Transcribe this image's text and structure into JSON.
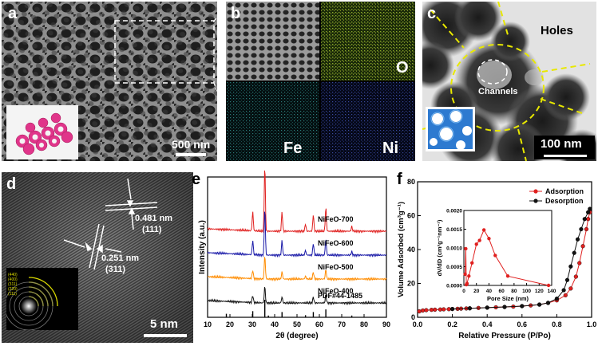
{
  "panels": {
    "a": {
      "label": "a",
      "scale": "500 nm"
    },
    "b": {
      "label": "b",
      "maps": [
        "O",
        "Fe",
        "Ni"
      ]
    },
    "c": {
      "label": "c",
      "holes": "Holes",
      "channels": "Channels",
      "scale": "100 nm"
    },
    "d": {
      "label": "d",
      "spacing1": "0.481 nm",
      "plane1": "(111)",
      "spacing2": "0.251 nm",
      "plane2": "(311)",
      "scale": "5 nm",
      "saed_rings": [
        "(440)",
        "(400)",
        "(311)",
        "(220)",
        "(111)"
      ]
    },
    "e": {
      "label": "e"
    },
    "f": {
      "label": "f"
    }
  },
  "colors": {
    "highlight": "#e8e800",
    "map_O": "#8aa82a",
    "map_Fe": "#2a7a78",
    "map_Ni": "#3a4aa0"
  },
  "chart_data": [
    {
      "type": "line",
      "panel": "e",
      "xlabel": "2θ (degree)",
      "ylabel": "Intensity (a.u.)",
      "xlim": [
        10,
        90
      ],
      "xticks": [
        "10",
        "20",
        "30",
        "40",
        "50",
        "60",
        "70",
        "80",
        "90"
      ],
      "series": [
        {
          "name": "NiFeO-700",
          "color": "#e0201f",
          "baseline": 4,
          "peaks": [
            [
              30.2,
              0.8
            ],
            [
              35.6,
              2.8
            ],
            [
              43.3,
              0.8
            ],
            [
              53.8,
              0.3
            ],
            [
              57.3,
              0.7
            ],
            [
              62.9,
              1.0
            ],
            [
              74.5,
              0.2
            ]
          ]
        },
        {
          "name": "NiFeO-600",
          "color": "#1a1aa8",
          "baseline": 3,
          "peaks": [
            [
              30.2,
              0.6
            ],
            [
              35.6,
              2.0
            ],
            [
              43.3,
              0.6
            ],
            [
              53.8,
              0.2
            ],
            [
              57.3,
              0.5
            ],
            [
              62.9,
              0.7
            ],
            [
              74.5,
              0.15
            ]
          ]
        },
        {
          "name": "NiFeO-500",
          "color": "#ff8c00",
          "baseline": 2,
          "peaks": [
            [
              30.2,
              0.35
            ],
            [
              35.6,
              1.0
            ],
            [
              43.3,
              0.3
            ],
            [
              53.8,
              0.12
            ],
            [
              57.3,
              0.3
            ],
            [
              62.9,
              0.4
            ]
          ]
        },
        {
          "name": "NiFeO-400",
          "color": "#111111",
          "baseline": 1,
          "peaks": [
            [
              30.2,
              0.3
            ],
            [
              35.6,
              0.7
            ],
            [
              43.3,
              0.25
            ],
            [
              57.3,
              0.25
            ],
            [
              62.9,
              0.35
            ]
          ]
        }
      ],
      "reference": {
        "name": "PDF#44-1485",
        "sticks": [
          [
            18.4,
            0.2
          ],
          [
            30.2,
            0.35
          ],
          [
            35.6,
            1.0
          ],
          [
            37.2,
            0.1
          ],
          [
            43.3,
            0.3
          ],
          [
            53.8,
            0.12
          ],
          [
            57.3,
            0.3
          ],
          [
            62.9,
            0.45
          ],
          [
            74.5,
            0.1
          ]
        ]
      }
    },
    {
      "type": "line",
      "panel": "f",
      "xlabel": "Relative Pressure (P/Po)",
      "ylabel": "Volume Adsorbed (cm³g⁻¹)",
      "xlim": [
        0,
        1.0
      ],
      "ylim": [
        0,
        80
      ],
      "xticks": [
        "0.0",
        "0.2",
        "0.4",
        "0.6",
        "0.8",
        "1.0"
      ],
      "yticks": [
        "0",
        "20",
        "40",
        "60",
        "80"
      ],
      "series": [
        {
          "name": "Adsorption",
          "color": "#e0201f",
          "x": [
            0.01,
            0.03,
            0.05,
            0.08,
            0.1,
            0.13,
            0.15,
            0.18,
            0.2,
            0.23,
            0.25,
            0.28,
            0.3,
            0.35,
            0.4,
            0.45,
            0.5,
            0.55,
            0.6,
            0.65,
            0.7,
            0.75,
            0.8,
            0.85,
            0.88,
            0.91,
            0.93,
            0.95,
            0.97,
            0.98,
            0.99
          ],
          "y": [
            3.5,
            4.0,
            4.2,
            4.4,
            4.5,
            4.6,
            4.7,
            4.8,
            4.9,
            5.0,
            5.1,
            5.2,
            5.3,
            5.5,
            5.7,
            5.9,
            6.1,
            6.3,
            6.6,
            7.0,
            7.5,
            8.5,
            10,
            13,
            17,
            24,
            32,
            42,
            52,
            58,
            62
          ]
        },
        {
          "name": "Desorption",
          "color": "#111111",
          "x": [
            0.99,
            0.98,
            0.96,
            0.94,
            0.92,
            0.9,
            0.88,
            0.86,
            0.84,
            0.8,
            0.75,
            0.7,
            0.6,
            0.5,
            0.4,
            0.3,
            0.2
          ],
          "y": [
            64,
            62,
            58,
            52,
            46,
            38,
            30,
            22,
            16,
            11,
            8.5,
            7.5,
            6.6,
            6.1,
            5.7,
            5.3,
            4.9
          ]
        }
      ],
      "legend_position": "top-right"
    },
    {
      "type": "line",
      "panel": "f-inset",
      "xlabel": "Pore Size (nm)",
      "ylabel": "dV/dD (cm³g⁻¹nm⁻¹)",
      "xlim": [
        0,
        140
      ],
      "ylim": [
        0,
        0.002
      ],
      "xticks": [
        "0",
        "20",
        "40",
        "60",
        "80",
        "100",
        "120",
        "140"
      ],
      "yticks": [
        "0.0000",
        "0.0005",
        "0.0010",
        "0.0015",
        "0.0020"
      ],
      "series": [
        {
          "name": "",
          "color": "#e0201f",
          "x": [
            2,
            3,
            4,
            5,
            8,
            13,
            20,
            25,
            32,
            40,
            50,
            70,
            135
          ],
          "y": [
            0.0003,
            0.00098,
            2e-05,
            5e-05,
            0.00025,
            0.0006,
            0.0011,
            0.0012,
            0.00148,
            0.00125,
            0.0008,
            0.00025,
            0.0
          ]
        }
      ]
    }
  ]
}
